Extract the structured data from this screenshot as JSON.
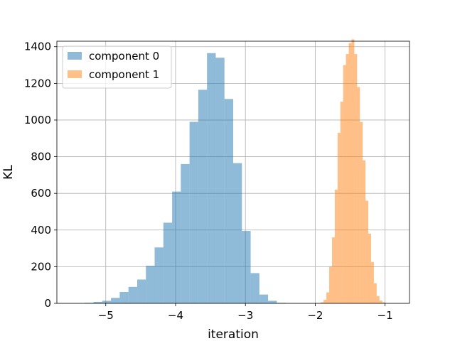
{
  "chart_data": {
    "type": "bar",
    "xlabel": "iteration",
    "ylabel": "KL",
    "xlim": [
      -5.7,
      -0.65
    ],
    "ylim": [
      0,
      1430
    ],
    "grid": true,
    "legend_position": "top-left",
    "x_ticks": [
      -5,
      -4,
      -3,
      -2,
      -1
    ],
    "x_tick_labels": [
      "−5",
      "−4",
      "−3",
      "−2",
      "−1"
    ],
    "y_ticks": [
      0,
      200,
      400,
      600,
      800,
      1000,
      1200,
      1400
    ],
    "y_tick_labels": [
      "0",
      "200",
      "400",
      "600",
      "800",
      "1000",
      "1200",
      "1400"
    ],
    "series": [
      {
        "name": "component 0",
        "color": "#1f77b4",
        "opacity": 0.5,
        "bin_edges": [
          -5.3,
          -5.175,
          -5.05,
          -4.925,
          -4.8,
          -4.675,
          -4.55,
          -4.425,
          -4.3,
          -4.175,
          -4.05,
          -3.925,
          -3.8,
          -3.675,
          -3.55,
          -3.425,
          -3.3,
          -3.175,
          -3.05,
          -2.925,
          -2.8,
          -2.675,
          -2.55,
          -2.425,
          -2.3
        ],
        "counts": [
          3,
          8,
          14,
          30,
          62,
          90,
          130,
          205,
          305,
          440,
          610,
          760,
          990,
          1165,
          1365,
          1340,
          1115,
          765,
          395,
          165,
          48,
          14,
          3,
          1
        ]
      },
      {
        "name": "component 1",
        "color": "#ff7f0e",
        "opacity": 0.5,
        "bin_edges": [
          -1.92,
          -1.88,
          -1.84,
          -1.8,
          -1.76,
          -1.72,
          -1.68,
          -1.64,
          -1.6,
          -1.56,
          -1.52,
          -1.48,
          -1.44,
          -1.4,
          -1.36,
          -1.32,
          -1.28,
          -1.24,
          -1.2,
          -1.16,
          -1.12,
          -1.08,
          -1.04,
          -1.0,
          -0.96,
          -0.92,
          -0.88,
          -0.84
        ],
        "counts": [
          6,
          20,
          60,
          200,
          360,
          620,
          930,
          1100,
          1300,
          1360,
          1420,
          1440,
          1360,
          1180,
          990,
          780,
          560,
          380,
          225,
          110,
          40,
          15,
          6,
          2,
          1,
          1,
          1
        ]
      }
    ]
  }
}
